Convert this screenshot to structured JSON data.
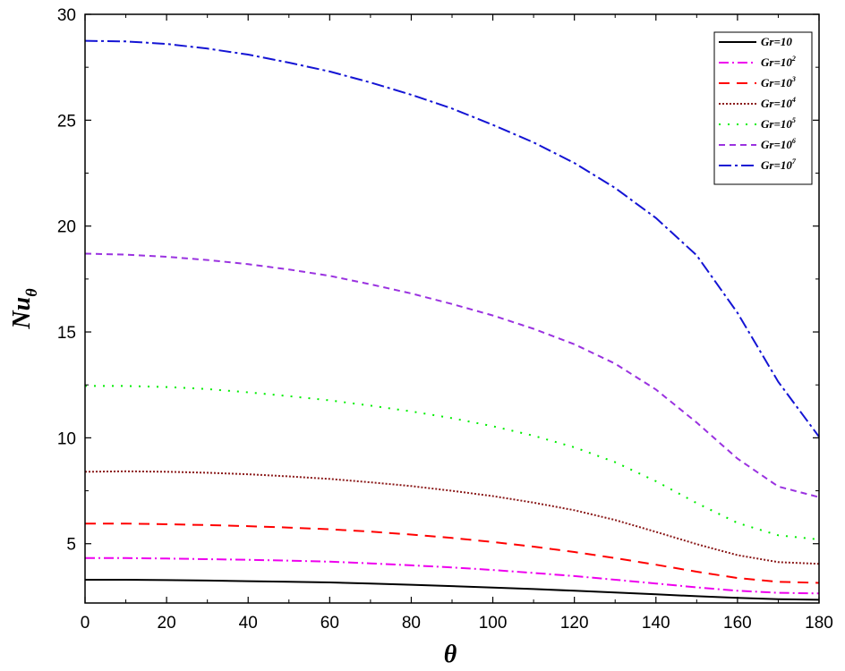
{
  "chart_data": {
    "type": "line",
    "xlabel": "θ",
    "ylabel_main": "Nu",
    "ylabel_sub": "θ",
    "xlim": [
      0,
      180
    ],
    "ylim": [
      2.2,
      30
    ],
    "xticks": [
      0,
      20,
      40,
      60,
      80,
      100,
      120,
      140,
      160,
      180
    ],
    "yticks": [
      5,
      10,
      15,
      20,
      25,
      30
    ],
    "legend_position": "top-right",
    "grid": false,
    "x": [
      0,
      10,
      20,
      30,
      40,
      50,
      60,
      70,
      80,
      90,
      100,
      110,
      120,
      130,
      140,
      150,
      160,
      170,
      180
    ],
    "series": [
      {
        "name": "Gr=10",
        "label_base": "Gr=10",
        "label_exp": "",
        "color": "#000000",
        "dash": "",
        "values": [
          3.3,
          3.3,
          3.28,
          3.26,
          3.23,
          3.2,
          3.17,
          3.12,
          3.06,
          3.0,
          2.93,
          2.86,
          2.78,
          2.7,
          2.61,
          2.52,
          2.44,
          2.38,
          2.35
        ]
      },
      {
        "name": "Gr=10^2",
        "label_base": "Gr=10",
        "label_exp": "2",
        "color": "#ee00ee",
        "dash": "11,4,2,4",
        "values": [
          4.32,
          4.32,
          4.3,
          4.27,
          4.24,
          4.2,
          4.15,
          4.07,
          3.98,
          3.88,
          3.76,
          3.62,
          3.47,
          3.3,
          3.12,
          2.94,
          2.78,
          2.68,
          2.65
        ]
      },
      {
        "name": "Gr=10^3",
        "label_base": "Gr=10",
        "label_exp": "3",
        "color": "#ff0000",
        "dash": "12,8",
        "values": [
          5.95,
          5.95,
          5.92,
          5.88,
          5.83,
          5.76,
          5.68,
          5.57,
          5.43,
          5.27,
          5.08,
          4.86,
          4.61,
          4.32,
          4.01,
          3.68,
          3.38,
          3.2,
          3.15
        ]
      },
      {
        "name": "Gr=10^4",
        "label_base": "Gr=10",
        "label_exp": "4",
        "color": "#8b1a1a",
        "dash": "2,2",
        "values": [
          8.4,
          8.42,
          8.4,
          8.35,
          8.28,
          8.18,
          8.06,
          7.9,
          7.72,
          7.5,
          7.25,
          6.94,
          6.58,
          6.12,
          5.56,
          4.98,
          4.46,
          4.13,
          4.05
        ]
      },
      {
        "name": "Gr=10^5",
        "label_base": "Gr=10",
        "label_exp": "5",
        "color": "#00ee00",
        "dash": "2,8",
        "values": [
          12.45,
          12.45,
          12.4,
          12.3,
          12.15,
          11.97,
          11.77,
          11.52,
          11.25,
          10.93,
          10.55,
          10.1,
          9.55,
          8.85,
          7.95,
          6.92,
          5.98,
          5.4,
          5.2
        ]
      },
      {
        "name": "Gr=10^6",
        "label_base": "Gr=10",
        "label_exp": "6",
        "color": "#9a32e0",
        "dash": "7,5",
        "values": [
          18.7,
          18.65,
          18.55,
          18.4,
          18.2,
          17.95,
          17.65,
          17.25,
          16.82,
          16.32,
          15.78,
          15.15,
          14.42,
          13.5,
          12.28,
          10.72,
          9.02,
          7.7,
          7.2
        ]
      },
      {
        "name": "Gr=10^7",
        "label_base": "Gr=10",
        "label_exp": "7",
        "color": "#1414d4",
        "dash": "14,4,3,4",
        "values": [
          28.75,
          28.72,
          28.6,
          28.38,
          28.1,
          27.72,
          27.3,
          26.78,
          26.2,
          25.55,
          24.78,
          23.95,
          22.98,
          21.8,
          20.38,
          18.62,
          15.9,
          12.65,
          10.05
        ]
      }
    ]
  }
}
